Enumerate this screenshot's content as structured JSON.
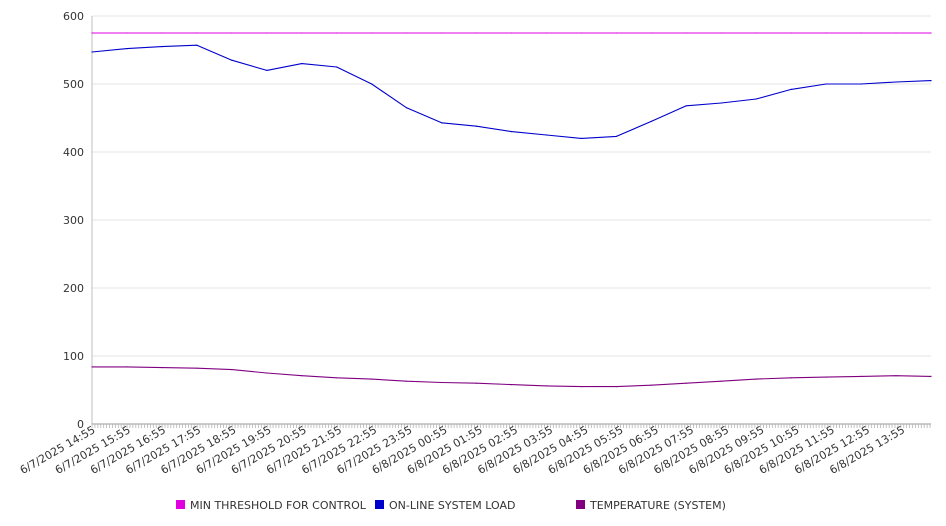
{
  "chart_data": {
    "type": "line",
    "title": "",
    "xlabel": "",
    "ylabel": "",
    "ylim": [
      0,
      600
    ],
    "y_ticks": [
      0,
      100,
      200,
      300,
      400,
      500,
      600
    ],
    "x_tick_labels": [
      "6/7/2025 14:55",
      "6/7/2025 15:55",
      "6/7/2025 16:55",
      "6/7/2025 17:55",
      "6/7/2025 18:55",
      "6/7/2025 19:55",
      "6/7/2025 20:55",
      "6/7/2025 21:55",
      "6/7/2025 22:55",
      "6/7/2025 23:55",
      "6/8/2025 00:55",
      "6/8/2025 01:55",
      "6/8/2025 02:55",
      "6/8/2025 03:55",
      "6/8/2025 04:55",
      "6/8/2025 05:55",
      "6/8/2025 06:55",
      "6/8/2025 07:55",
      "6/8/2025 08:55",
      "6/8/2025 09:55",
      "6/8/2025 10:55",
      "6/8/2025 11:55",
      "6/8/2025 12:55",
      "6/8/2025 13:55"
    ],
    "grid": "horizontal",
    "legend_position": "bottom",
    "series": [
      {
        "name": "MIN THRESHOLD FOR CONTROL",
        "color": "#e000e0",
        "values": [
          575,
          575,
          575,
          575,
          575,
          575,
          575,
          575,
          575,
          575,
          575,
          575,
          575,
          575,
          575,
          575,
          575,
          575,
          575,
          575,
          575,
          575,
          575,
          575,
          575
        ]
      },
      {
        "name": "ON-LINE SYSTEM LOAD",
        "color": "#0000cc",
        "values": [
          547,
          552,
          555,
          557,
          535,
          520,
          530,
          525,
          500,
          465,
          443,
          438,
          430,
          425,
          420,
          423,
          445,
          468,
          472,
          478,
          492,
          500,
          500,
          503,
          505
        ]
      },
      {
        "name": "TEMPERATURE (SYSTEM)",
        "color": "#800080",
        "values": [
          84,
          84,
          83,
          82,
          80,
          75,
          71,
          68,
          66,
          63,
          61,
          60,
          58,
          56,
          55,
          55,
          57,
          60,
          63,
          66,
          68,
          69,
          70,
          71,
          70
        ]
      }
    ]
  }
}
